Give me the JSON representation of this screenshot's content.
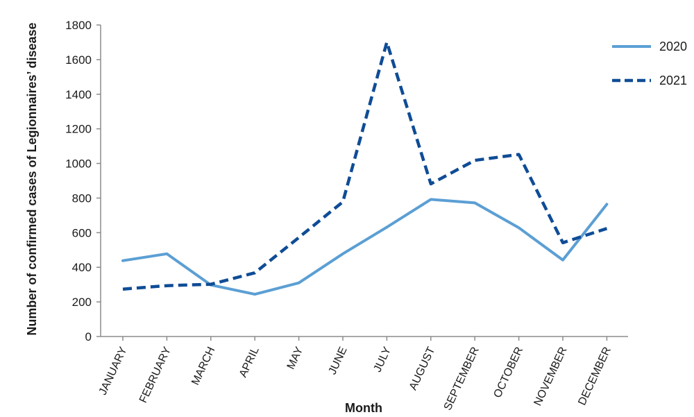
{
  "chart_data": {
    "type": "line",
    "xlabel": "Month",
    "ylabel": "Number of confirmed cases of Legionnaires’ disease",
    "ylim": [
      0,
      1800
    ],
    "yticks": [
      0,
      200,
      400,
      600,
      800,
      1000,
      1200,
      1400,
      1600,
      1800
    ],
    "categories": [
      "JANUARY",
      "FEBRUARY",
      "MARCH",
      "APRIL",
      "MAY",
      "JUNE",
      "JULY",
      "AUGUST",
      "SEPTEMBER",
      "OCTOBER",
      "NOVEMBER",
      "DECEMBER"
    ],
    "legend_position": "top-right",
    "grid": false,
    "series": [
      {
        "name": "2020",
        "style": "solid",
        "color": "#5b9fd4",
        "values": [
          438,
          478,
          298,
          244,
          310,
          478,
          632,
          792,
          772,
          628,
          442,
          764
        ]
      },
      {
        "name": "2021",
        "style": "dashed",
        "color": "#0f4c96",
        "values": [
          274,
          294,
          302,
          368,
          572,
          778,
          1700,
          882,
          1018,
          1052,
          542,
          624
        ]
      }
    ]
  }
}
